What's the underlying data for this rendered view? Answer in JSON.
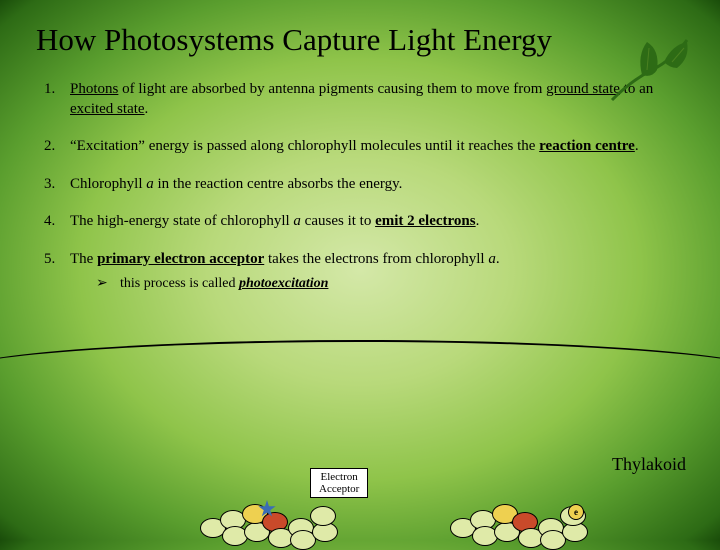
{
  "title": "How Photosystems Capture Light Energy",
  "items": [
    {
      "num": "1.",
      "html": "<span class='underline'>Photons</span> of light are absorbed by antenna pigments causing them to move from <span class='underline'>ground state</span> to an <span class='underline'>excited state</span>."
    },
    {
      "num": "2.",
      "html": "“Excitation” energy is passed along chlorophyll molecules until it reaches the <span class='bold underline'>reaction centre</span>."
    },
    {
      "num": "3.",
      "html": "Chlorophyll <span class='italic'>a</span> in the reaction centre absorbs the energy."
    },
    {
      "num": "4.",
      "html": "The high-energy state of chlorophyll <span class='italic'>a</span> causes it to <span class='bold underline'>emit 2 electrons</span>."
    },
    {
      "num": "5.",
      "html": "The <span class='bold underline'>primary electron acceptor</span> takes the electrons from chlorophyll <span class='italic'>a</span>.",
      "sub": {
        "marker": "➢",
        "html": "this process is called <span class='bold italic underline'>photoexcitation</span>"
      }
    }
  ],
  "labels": {
    "thylakoid": "Thylakoid",
    "electron_acceptor_l1": "Electron",
    "electron_acceptor_l2": "Acceptor",
    "e": "e"
  },
  "colors": {
    "leaf": "#2d6b15",
    "green_pigment": "#dfeaa8",
    "yellow_pigment": "#eed050",
    "red_pigment": "#c94a2a",
    "flash": "#3a6db5"
  }
}
